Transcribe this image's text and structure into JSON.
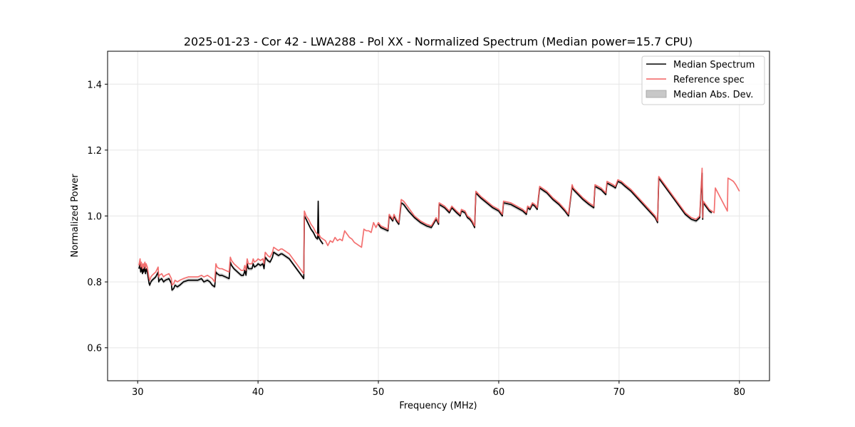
{
  "chart_data": {
    "type": "line",
    "title": "2025-01-23 - Cor 42 - LWA288 - Pol XX - Normalized Spectrum (Median power=15.7 CPU)",
    "xlabel": "Frequency (MHz)",
    "ylabel": "Normalized Power",
    "xlim": [
      27.5,
      82.5
    ],
    "ylim": [
      0.5,
      1.5
    ],
    "xticks": [
      30,
      40,
      50,
      60,
      70,
      80
    ],
    "yticks": [
      0.6,
      0.8,
      1.0,
      1.2,
      1.4
    ],
    "xtick_labels": [
      "30",
      "40",
      "50",
      "60",
      "70",
      "80"
    ],
    "ytick_labels": [
      "0.6",
      "0.8",
      "1.0",
      "1.2",
      "1.4"
    ],
    "grid": true,
    "legend_position": "top-right",
    "series": [
      {
        "name": "Median Spectrum",
        "color": "#000000",
        "segments": [
          {
            "x": [
              30.1,
              30.2,
              30.25,
              30.3,
              30.4,
              30.45,
              30.5,
              30.6,
              30.65,
              30.7,
              30.8,
              30.95,
              31.0,
              31.1,
              31.2,
              31.35,
              31.5,
              31.7,
              31.75,
              31.8,
              32.0,
              32.15,
              32.3,
              32.6,
              32.8,
              32.85,
              33.0,
              33.1,
              33.3,
              33.5,
              33.8,
              34.2,
              34.6,
              35.0,
              35.3,
              35.5,
              35.8,
              36.0,
              36.2,
              36.4,
              36.5,
              36.6,
              36.8,
              37.0,
              37.3,
              37.6,
              37.7,
              37.8,
              38.0,
              38.3,
              38.6,
              38.8,
              38.9,
              39.0,
              39.1,
              39.2,
              39.3,
              39.5,
              39.6,
              39.7,
              39.9,
              40.0,
              40.2,
              40.4,
              40.5,
              40.6,
              40.8,
              41.0,
              41.2,
              41.3,
              41.5,
              41.7,
              41.9,
              42.0,
              42.2,
              42.4,
              42.6,
              42.8,
              43.0,
              43.2,
              43.5,
              43.8,
              43.85,
              44.0,
              44.2,
              44.4,
              44.6,
              44.8,
              44.95,
              45.0,
              45.05,
              45.2,
              45.4
            ],
            "y": [
              0.84,
              0.855,
              0.83,
              0.845,
              0.825,
              0.84,
              0.83,
              0.845,
              0.825,
              0.84,
              0.83,
              0.795,
              0.79,
              0.8,
              0.805,
              0.81,
              0.815,
              0.83,
              0.8,
              0.805,
              0.81,
              0.8,
              0.805,
              0.81,
              0.795,
              0.775,
              0.78,
              0.79,
              0.785,
              0.79,
              0.8,
              0.805,
              0.805,
              0.805,
              0.81,
              0.8,
              0.805,
              0.8,
              0.79,
              0.785,
              0.83,
              0.825,
              0.82,
              0.82,
              0.815,
              0.81,
              0.86,
              0.85,
              0.84,
              0.83,
              0.82,
              0.82,
              0.835,
              0.82,
              0.855,
              0.84,
              0.84,
              0.84,
              0.855,
              0.845,
              0.85,
              0.855,
              0.85,
              0.855,
              0.84,
              0.875,
              0.865,
              0.86,
              0.875,
              0.89,
              0.885,
              0.88,
              0.885,
              0.885,
              0.88,
              0.875,
              0.87,
              0.86,
              0.85,
              0.84,
              0.825,
              0.81,
              1.0,
              0.99,
              0.975,
              0.96,
              0.95,
              0.935,
              0.93,
              1.045,
              0.935,
              0.925,
              0.915
            ]
          },
          {
            "x": [
              50.0,
              50.2,
              50.5,
              50.8,
              50.9,
              51.0,
              51.2,
              51.3,
              51.5,
              51.7,
              51.9,
              52.1,
              52.5,
              53.0,
              53.5,
              54.0,
              54.4,
              54.8,
              55.0,
              55.05,
              55.5,
              55.9,
              56.1,
              56.5,
              56.8,
              56.9,
              57.2,
              57.4,
              57.6,
              57.8,
              58.0,
              58.1,
              58.5,
              59.0,
              59.5,
              60.0,
              60.3,
              60.4,
              61.0,
              61.5,
              62.0,
              62.3,
              62.4,
              62.6,
              62.8,
              63.0,
              63.2,
              63.4,
              63.6,
              64.0,
              64.5,
              65.0,
              65.5,
              65.8,
              66.1,
              66.2,
              66.6,
              67.0,
              67.5,
              67.9,
              68.0,
              68.5,
              68.9,
              69.0,
              69.5,
              69.7,
              69.9,
              70.2,
              70.5,
              71.0,
              71.5,
              72.0,
              72.5,
              73.0,
              73.2,
              73.3,
              73.6,
              74.0,
              74.5,
              75.0,
              75.5,
              76.0,
              76.4,
              76.7,
              76.9,
              76.95,
              77.0,
              77.1,
              77.3,
              77.5,
              77.7
            ],
            "y": [
              0.975,
              0.965,
              0.96,
              0.955,
              1.0,
              0.995,
              0.985,
              1.0,
              0.985,
              0.975,
              1.04,
              1.035,
              1.015,
              0.995,
              0.98,
              0.97,
              0.965,
              0.99,
              0.975,
              1.035,
              1.025,
              1.01,
              1.025,
              1.01,
              1.0,
              1.015,
              1.01,
              0.995,
              0.99,
              0.98,
              0.965,
              1.07,
              1.055,
              1.04,
              1.025,
              1.015,
              1.0,
              1.04,
              1.035,
              1.025,
              1.015,
              1.005,
              1.025,
              1.02,
              1.035,
              1.03,
              1.02,
              1.085,
              1.08,
              1.07,
              1.05,
              1.035,
              1.015,
              1.0,
              1.09,
              1.08,
              1.065,
              1.05,
              1.035,
              1.025,
              1.09,
              1.08,
              1.065,
              1.1,
              1.09,
              1.085,
              1.105,
              1.1,
              1.09,
              1.075,
              1.055,
              1.035,
              1.015,
              0.995,
              0.98,
              1.115,
              1.1,
              1.08,
              1.055,
              1.03,
              1.005,
              0.99,
              0.985,
              0.995,
              1.13,
              0.99,
              1.04,
              1.035,
              1.025,
              1.015,
              1.01
            ]
          }
        ]
      },
      {
        "name": "Reference spec",
        "color": "#f26060",
        "segments": [
          {
            "x": [
              30.1,
              30.2,
              30.25,
              30.3,
              30.4,
              30.45,
              30.5,
              30.6,
              30.65,
              30.7,
              30.8,
              30.95,
              31.0,
              31.1,
              31.2,
              31.35,
              31.5,
              31.7,
              31.75,
              31.8,
              32.0,
              32.15,
              32.3,
              32.6,
              32.8,
              32.85,
              33.0,
              33.1,
              33.3,
              33.5,
              33.8,
              34.2,
              34.6,
              35.0,
              35.3,
              35.5,
              35.8,
              36.0,
              36.2,
              36.4,
              36.5,
              36.6,
              36.8,
              37.0,
              37.3,
              37.6,
              37.7,
              37.8,
              38.0,
              38.3,
              38.6,
              38.8,
              38.9,
              39.0,
              39.1,
              39.2,
              39.3,
              39.5,
              39.6,
              39.7,
              39.9,
              40.0,
              40.2,
              40.4,
              40.5,
              40.6,
              40.8,
              41.0,
              41.2,
              41.3,
              41.5,
              41.7,
              41.9,
              42.0,
              42.2,
              42.4,
              42.6,
              42.8,
              43.0,
              43.2,
              43.5,
              43.8,
              43.85,
              44.0,
              44.2,
              44.4,
              44.6,
              44.8,
              44.95,
              45.0,
              45.05,
              45.2,
              45.4,
              45.6,
              45.8,
              46.0,
              46.2,
              46.4,
              46.6,
              46.8,
              47.0,
              47.2,
              47.4,
              47.6,
              47.8,
              48.0,
              48.2,
              48.4,
              48.6,
              48.8,
              49.0,
              49.2,
              49.4,
              49.6,
              49.8,
              50.0,
              50.2,
              50.5,
              50.8,
              50.9,
              51.0,
              51.2,
              51.3,
              51.5,
              51.7,
              51.9,
              52.1,
              52.5,
              53.0,
              53.5,
              54.0,
              54.4,
              54.8,
              55.0,
              55.05,
              55.5,
              55.9,
              56.1,
              56.5,
              56.8,
              56.9,
              57.2,
              57.4,
              57.6,
              57.8,
              58.0,
              58.1,
              58.5,
              59.0,
              59.5,
              60.0,
              60.3,
              60.4,
              61.0,
              61.5,
              62.0,
              62.3,
              62.4,
              62.6,
              62.8,
              63.0,
              63.2,
              63.4,
              63.6,
              64.0,
              64.5,
              65.0,
              65.5,
              65.8,
              66.1,
              66.2,
              66.6,
              67.0,
              67.5,
              67.9,
              68.0,
              68.5,
              68.9,
              69.0,
              69.5,
              69.7,
              69.9,
              70.2,
              70.5,
              71.0,
              71.5,
              72.0,
              72.5,
              73.0,
              73.2,
              73.3,
              73.6,
              74.0,
              74.5,
              75.0,
              75.5,
              76.0,
              76.4,
              76.7,
              76.9,
              76.95,
              77.0,
              77.1,
              77.3,
              77.5,
              77.7,
              77.9,
              78.0,
              78.5,
              79.0,
              79.05,
              79.3,
              79.5,
              79.7,
              80.0
            ],
            "y": [
              0.85,
              0.87,
              0.845,
              0.86,
              0.84,
              0.855,
              0.845,
              0.86,
              0.84,
              0.855,
              0.845,
              0.81,
              0.805,
              0.815,
              0.82,
              0.825,
              0.83,
              0.845,
              0.815,
              0.82,
              0.825,
              0.815,
              0.82,
              0.825,
              0.81,
              0.79,
              0.795,
              0.805,
              0.8,
              0.805,
              0.81,
              0.815,
              0.815,
              0.815,
              0.82,
              0.815,
              0.82,
              0.815,
              0.81,
              0.8,
              0.855,
              0.845,
              0.84,
              0.84,
              0.835,
              0.83,
              0.875,
              0.865,
              0.855,
              0.845,
              0.835,
              0.835,
              0.85,
              0.835,
              0.87,
              0.855,
              0.855,
              0.855,
              0.87,
              0.86,
              0.865,
              0.87,
              0.865,
              0.87,
              0.855,
              0.89,
              0.88,
              0.875,
              0.89,
              0.905,
              0.9,
              0.895,
              0.9,
              0.9,
              0.895,
              0.89,
              0.885,
              0.875,
              0.865,
              0.855,
              0.84,
              0.825,
              1.015,
              1.0,
              0.99,
              0.975,
              0.965,
              0.95,
              0.945,
              0.94,
              0.945,
              0.935,
              0.93,
              0.925,
              0.91,
              0.925,
              0.92,
              0.935,
              0.925,
              0.93,
              0.925,
              0.955,
              0.945,
              0.935,
              0.93,
              0.92,
              0.915,
              0.91,
              0.905,
              0.96,
              0.955,
              0.955,
              0.95,
              0.98,
              0.965,
              0.98,
              0.97,
              0.965,
              0.96,
              1.005,
              1.0,
              0.99,
              1.005,
              0.99,
              0.98,
              1.05,
              1.045,
              1.025,
              1.0,
              0.985,
              0.975,
              0.97,
              0.995,
              0.98,
              1.04,
              1.03,
              1.015,
              1.03,
              1.015,
              1.005,
              1.02,
              1.015,
              1.0,
              0.995,
              0.985,
              0.97,
              1.075,
              1.06,
              1.045,
              1.03,
              1.02,
              1.005,
              1.045,
              1.04,
              1.03,
              1.02,
              1.01,
              1.03,
              1.025,
              1.04,
              1.035,
              1.025,
              1.09,
              1.085,
              1.075,
              1.055,
              1.04,
              1.02,
              1.005,
              1.095,
              1.085,
              1.07,
              1.055,
              1.04,
              1.03,
              1.095,
              1.085,
              1.07,
              1.105,
              1.095,
              1.09,
              1.11,
              1.105,
              1.095,
              1.08,
              1.06,
              1.04,
              1.02,
              1.0,
              0.985,
              1.12,
              1.105,
              1.085,
              1.06,
              1.035,
              1.01,
              0.995,
              0.99,
              1.0,
              1.145,
              0.995,
              1.045,
              1.04,
              1.03,
              1.02,
              1.015,
              1.01,
              1.085,
              1.05,
              1.015,
              1.115,
              1.11,
              1.105,
              1.095,
              1.075
            ]
          }
        ]
      },
      {
        "name": "Median Abs. Dev.",
        "color": "#c8c8c8",
        "kind": "band",
        "half_width": 0.006
      }
    ]
  },
  "legend": {
    "items": [
      {
        "label": "Median Spectrum",
        "color": "#000000",
        "kind": "line"
      },
      {
        "label": "Reference spec",
        "color": "#f26060",
        "kind": "line"
      },
      {
        "label": "Median Abs. Dev.",
        "color": "#c8c8c8",
        "kind": "patch"
      }
    ]
  }
}
